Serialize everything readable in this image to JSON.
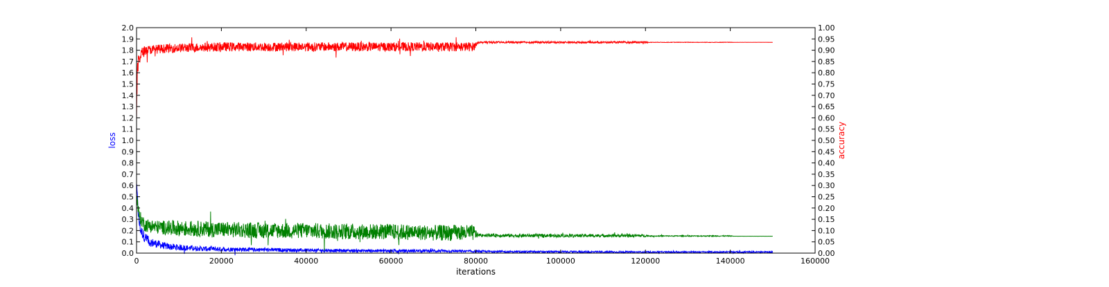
{
  "chart_data": {
    "type": "line",
    "xlabel": "iterations",
    "ylabel_left": "loss",
    "ylabel_right": "accuracy",
    "xlim": [
      0,
      160000
    ],
    "ylim_left": [
      0.0,
      2.0
    ],
    "ylim_right": [
      0.0,
      1.0
    ],
    "x_ticks": [
      "0",
      "20000",
      "40000",
      "60000",
      "80000",
      "100000",
      "120000",
      "140000",
      "160000"
    ],
    "y_left_ticks": [
      "0.0",
      "0.1",
      "0.2",
      "0.3",
      "0.4",
      "0.5",
      "0.6",
      "0.7",
      "0.8",
      "0.9",
      "1.0",
      "1.1",
      "1.2",
      "1.3",
      "1.4",
      "1.5",
      "1.6",
      "1.7",
      "1.8",
      "1.9",
      "2.0"
    ],
    "y_right_ticks": [
      "0.00",
      "0.05",
      "0.10",
      "0.15",
      "0.20",
      "0.25",
      "0.30",
      "0.35",
      "0.40",
      "0.45",
      "0.50",
      "0.55",
      "0.60",
      "0.65",
      "0.70",
      "0.75",
      "0.80",
      "0.85",
      "0.90",
      "0.95",
      "1.00"
    ],
    "grid": false,
    "colors": {
      "loss_label": "#0000ff",
      "accuracy_label": "#ff0000"
    },
    "series": [
      {
        "axis": "left",
        "color": "#0000ff",
        "x": [
          0,
          500,
          1000,
          2000,
          3000,
          5000,
          7000,
          10000,
          15000,
          20000,
          30000,
          40000,
          50000,
          60000,
          70000,
          80000,
          90000,
          100000,
          110000,
          120000,
          130000,
          140000,
          150000
        ],
        "y": [
          0.62,
          0.3,
          0.2,
          0.14,
          0.1,
          0.08,
          0.06,
          0.05,
          0.04,
          0.035,
          0.03,
          0.025,
          0.022,
          0.02,
          0.02,
          0.015,
          0.012,
          0.012,
          0.01,
          0.01,
          0.01,
          0.01,
          0.01
        ],
        "noise": [
          0.02,
          0.06,
          0.05,
          0.05,
          0.04,
          0.035,
          0.03,
          0.028,
          0.022,
          0.02,
          0.016,
          0.015,
          0.014,
          0.014,
          0.014,
          0.01,
          0.008,
          0.008,
          0.007,
          0.007,
          0.006,
          0.006,
          0.006
        ]
      },
      {
        "axis": "left",
        "color": "#008000",
        "x": [
          0,
          500,
          1000,
          2000,
          5000,
          10000,
          20000,
          30000,
          40000,
          50000,
          60000,
          70000,
          79500,
          80500,
          90000,
          100000,
          110000,
          120000,
          121000,
          130000,
          140000,
          141000,
          150000
        ],
        "y": [
          0.5,
          0.35,
          0.3,
          0.25,
          0.23,
          0.22,
          0.21,
          0.2,
          0.2,
          0.19,
          0.19,
          0.18,
          0.18,
          0.16,
          0.155,
          0.155,
          0.155,
          0.155,
          0.152,
          0.152,
          0.152,
          0.15,
          0.15
        ],
        "noise": [
          0.05,
          0.06,
          0.06,
          0.06,
          0.06,
          0.07,
          0.07,
          0.07,
          0.07,
          0.07,
          0.07,
          0.07,
          0.07,
          0.015,
          0.015,
          0.015,
          0.013,
          0.013,
          0.004,
          0.004,
          0.004,
          0.0005,
          0.0005
        ]
      },
      {
        "axis": "right",
        "color": "#ff0000",
        "x": [
          0,
          200,
          500,
          1000,
          2000,
          5000,
          10000,
          20000,
          30000,
          40000,
          50000,
          60000,
          70000,
          79500,
          80500,
          90000,
          100000,
          110000,
          120000,
          121000,
          130000,
          140000,
          141000,
          150000
        ],
        "y": [
          0.6,
          0.8,
          0.86,
          0.88,
          0.9,
          0.905,
          0.91,
          0.915,
          0.915,
          0.915,
          0.915,
          0.915,
          0.915,
          0.915,
          0.935,
          0.935,
          0.935,
          0.935,
          0.935,
          0.935,
          0.935,
          0.935,
          0.935,
          0.935
        ],
        "noise": [
          0.05,
          0.04,
          0.03,
          0.03,
          0.02,
          0.02,
          0.02,
          0.02,
          0.02,
          0.02,
          0.02,
          0.02,
          0.02,
          0.02,
          0.004,
          0.004,
          0.004,
          0.004,
          0.004,
          0.001,
          0.001,
          0.001,
          0.0002,
          0.0002
        ]
      }
    ]
  }
}
